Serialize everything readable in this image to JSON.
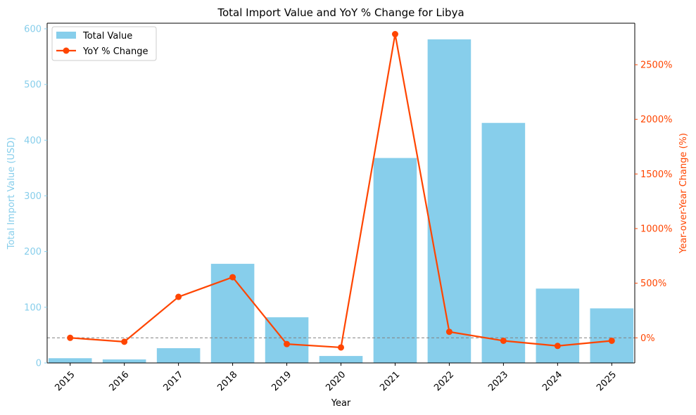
{
  "chart_data": {
    "type": "bar+line",
    "title": "Total Import Value and YoY % Change for Libya",
    "xlabel": "Year",
    "categories": [
      "2015",
      "2016",
      "2017",
      "2018",
      "2019",
      "2020",
      "2021",
      "2022",
      "2023",
      "2024",
      "2025"
    ],
    "series": [
      {
        "name": "Total Value",
        "type": "bar",
        "axis": "left",
        "color": "#87CEEB",
        "values": [
          8.5,
          6.3,
          26.5,
          178,
          82,
          12.5,
          368,
          581,
          431,
          133.5,
          98
        ]
      },
      {
        "name": "YoY % Change",
        "type": "line",
        "axis": "right",
        "color": "#FF4500",
        "values": [
          0,
          -36,
          375,
          555,
          -57,
          -88,
          2780,
          55,
          -27,
          -74,
          -27
        ]
      }
    ],
    "left_axis": {
      "label": "Total Import Value (USD)",
      "color": "#87CEEB",
      "ylim": [
        0,
        610
      ],
      "ticks": [
        0,
        100,
        200,
        300,
        400,
        500,
        600
      ],
      "tick_labels": [
        "0",
        "100",
        "200",
        "300",
        "400",
        "500",
        "600"
      ]
    },
    "right_axis": {
      "label": "Year-over-Year Change (%)",
      "color": "#FF4500",
      "ylim": [
        -230,
        2880
      ],
      "ticks": [
        0,
        500,
        1000,
        1500,
        2000,
        2500
      ],
      "tick_labels": [
        "0%",
        "500%",
        "1000%",
        "1500%",
        "2000%",
        "2500%"
      ]
    },
    "reference_line": {
      "axis": "right",
      "value": 0,
      "style": "dashed",
      "color": "#808080"
    },
    "legend": {
      "position": "top-left",
      "items": [
        "Total Value",
        "YoY % Change"
      ]
    }
  }
}
